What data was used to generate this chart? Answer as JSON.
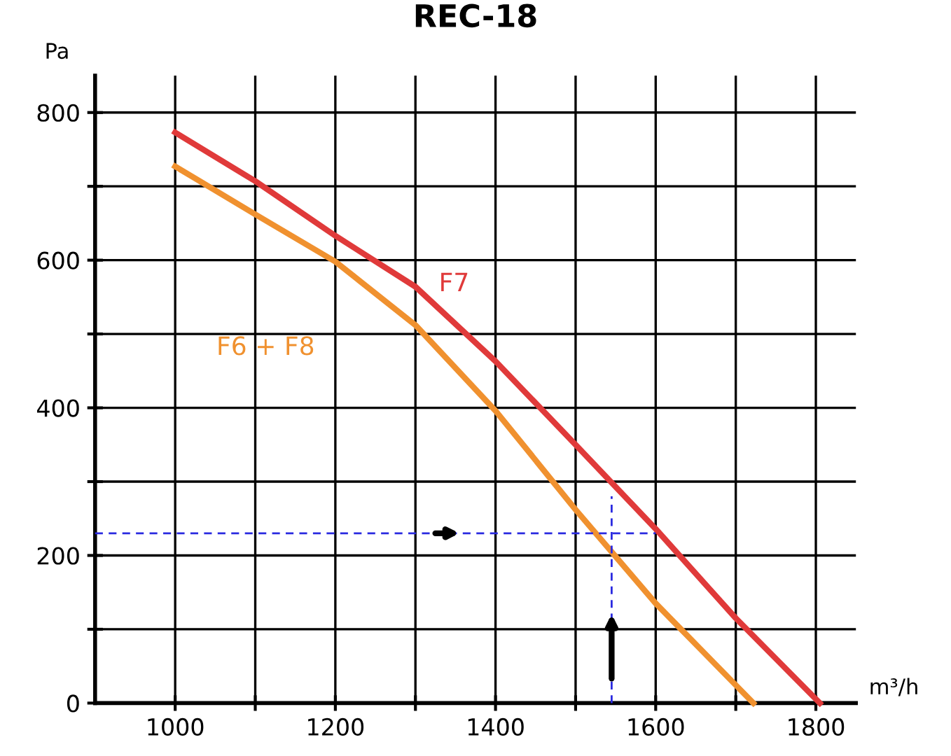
{
  "chart_data": {
    "type": "line",
    "title": "REC-18",
    "ylabel": "Pa",
    "xlabel": "m³/h",
    "xlim": [
      900,
      1850
    ],
    "ylim": [
      0,
      850
    ],
    "xticks": [
      1000,
      {
        "value": 1100,
        "label": null
      },
      1200,
      {
        "value": 1300,
        "label": null
      },
      1400,
      {
        "value": 1500,
        "label": null
      },
      1600,
      {
        "value": 1700,
        "label": null
      },
      1800
    ],
    "yticks": [
      0,
      {
        "value": 100,
        "label": null
      },
      200,
      {
        "value": 300,
        "label": null
      },
      400,
      {
        "value": 500,
        "label": null
      },
      600,
      {
        "value": 700,
        "label": null
      },
      800
    ],
    "grid": true,
    "marker": "none",
    "line_style": "solid",
    "series": [
      {
        "name": "F7",
        "color": "#e03a3a",
        "x": [
          1000,
          1100,
          1200,
          1300,
          1400,
          1500,
          1600,
          1700,
          1805
        ],
        "values": [
          773,
          707,
          633,
          564,
          463,
          350,
          236,
          115,
          0
        ]
      },
      {
        "name": "F6 + F8",
        "color": "#f0912f",
        "x": [
          1000,
          1100,
          1200,
          1300,
          1400,
          1500,
          1600,
          1722
        ],
        "values": [
          727,
          662,
          598,
          512,
          396,
          262,
          135,
          0
        ]
      },
      {
        "color": "#2a2ae0",
        "line_style": "dashed",
        "x": [
          900,
          1600
        ],
        "values": [
          230,
          230
        ]
      },
      {
        "color": "#2a2ae0",
        "line_style": "dashed",
        "x": [
          1545,
          1545
        ],
        "values": [
          0,
          280
        ]
      }
    ]
  }
}
